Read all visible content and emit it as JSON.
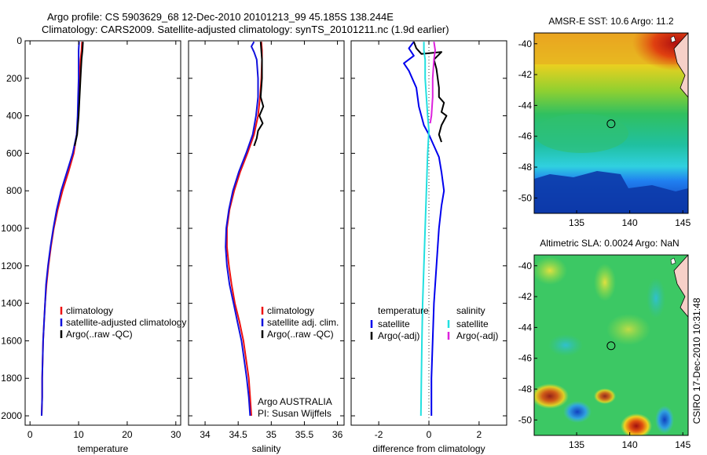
{
  "header": {
    "line1": "Argo profile: CS 5903629_68 12-Dec-2010 20101213_99 45.185S 138.244E",
    "line2": "Climatology: CARS2009. Satellite-adjusted climatology: synTS_20101211.nc (1.9d earlier)"
  },
  "side_note": "CSIRO 17-Dec-2010 10:31:48",
  "institution": {
    "line1": "Argo AUSTRALIA",
    "line2": "PI: Susan Wijffels"
  },
  "colors": {
    "climatology": "#ee1111",
    "satellite": "#1111dd",
    "argo": "#000000",
    "sat_temp": "#0000ee",
    "sat_sal": "#22e0e0",
    "argo_sal": "#dd22dd"
  },
  "chart_data": [
    {
      "type": "line",
      "xlabel": "temperature",
      "ylabel": "",
      "xlim": [
        -1,
        31
      ],
      "ylim": [
        2050,
        0
      ],
      "x_ticks": [
        0,
        10,
        20,
        30
      ],
      "y_ticks": [
        0,
        200,
        400,
        600,
        800,
        1000,
        1200,
        1400,
        1600,
        1800,
        2000
      ],
      "legend": [
        "climatology",
        "satellite-adjusted climatology",
        "Argo(..raw -QC)"
      ],
      "series": [
        {
          "name": "climatology",
          "color": "#ee1111",
          "points": [
            [
              10.7,
              5
            ],
            [
              10.6,
              50
            ],
            [
              10.4,
              100
            ],
            [
              10.2,
              200
            ],
            [
              10,
              300
            ],
            [
              9.9,
              400
            ],
            [
              9.6,
              500
            ],
            [
              9,
              600
            ],
            [
              7.9,
              700
            ],
            [
              6.7,
              800
            ],
            [
              5.7,
              900
            ],
            [
              4.9,
              1000
            ],
            [
              4.3,
              1100
            ],
            [
              3.8,
              1200
            ],
            [
              3.4,
              1300
            ],
            [
              3.1,
              1400
            ],
            [
              2.9,
              1500
            ],
            [
              2.7,
              1600
            ],
            [
              2.6,
              1700
            ],
            [
              2.5,
              1800
            ],
            [
              2.5,
              1900
            ],
            [
              2.4,
              2000
            ]
          ]
        },
        {
          "name": "satellite-adjusted climatology",
          "color": "#1111dd",
          "points": [
            [
              10.1,
              5
            ],
            [
              10,
              50
            ],
            [
              10,
              100
            ],
            [
              10,
              200
            ],
            [
              9.9,
              300
            ],
            [
              9.8,
              400
            ],
            [
              9.6,
              500
            ],
            [
              8.8,
              600
            ],
            [
              7.6,
              700
            ],
            [
              6.4,
              800
            ],
            [
              5.5,
              900
            ],
            [
              4.8,
              1000
            ],
            [
              4.2,
              1100
            ],
            [
              3.7,
              1200
            ],
            [
              3.3,
              1300
            ],
            [
              3.1,
              1400
            ],
            [
              2.9,
              1500
            ],
            [
              2.7,
              1600
            ],
            [
              2.6,
              1700
            ],
            [
              2.5,
              1800
            ],
            [
              2.5,
              1900
            ],
            [
              2.4,
              2000
            ]
          ]
        },
        {
          "name": "Argo(..raw -QC)",
          "color": "#000000",
          "points": [
            [
              10.9,
              5
            ],
            [
              10.8,
              50
            ],
            [
              10.6,
              100
            ],
            [
              10.4,
              200
            ],
            [
              10.2,
              300
            ],
            [
              10,
              400
            ],
            [
              9.7,
              500
            ],
            [
              9.2,
              560
            ]
          ]
        }
      ]
    },
    {
      "type": "line",
      "xlabel": "salinity",
      "ylabel": "",
      "xlim": [
        33.75,
        36.1
      ],
      "ylim": [
        2050,
        0
      ],
      "x_ticks": [
        34,
        34.5,
        35,
        35.5,
        36
      ],
      "y_ticks": [],
      "legend": [
        "climatology",
        "satellite adj. clim.",
        "Argo(..raw -QC)"
      ],
      "series": [
        {
          "name": "climatology",
          "color": "#ee1111",
          "points": [
            [
              34.85,
              5
            ],
            [
              34.86,
              50
            ],
            [
              34.86,
              100
            ],
            [
              34.85,
              200
            ],
            [
              34.83,
              300
            ],
            [
              34.8,
              400
            ],
            [
              34.74,
              500
            ],
            [
              34.64,
              600
            ],
            [
              34.53,
              700
            ],
            [
              34.44,
              800
            ],
            [
              34.37,
              900
            ],
            [
              34.33,
              1000
            ],
            [
              34.33,
              1100
            ],
            [
              34.36,
              1200
            ],
            [
              34.4,
              1300
            ],
            [
              34.45,
              1400
            ],
            [
              34.52,
              1500
            ],
            [
              34.58,
              1600
            ],
            [
              34.62,
              1700
            ],
            [
              34.66,
              1800
            ],
            [
              34.68,
              1900
            ],
            [
              34.7,
              2000
            ]
          ]
        },
        {
          "name": "satellite adj. clim.",
          "color": "#1111dd",
          "points": [
            [
              34.74,
              5
            ],
            [
              34.7,
              30
            ],
            [
              34.74,
              60
            ],
            [
              34.78,
              100
            ],
            [
              34.8,
              200
            ],
            [
              34.8,
              300
            ],
            [
              34.77,
              400
            ],
            [
              34.72,
              500
            ],
            [
              34.62,
              600
            ],
            [
              34.51,
              700
            ],
            [
              34.42,
              800
            ],
            [
              34.36,
              900
            ],
            [
              34.32,
              1000
            ],
            [
              34.31,
              1100
            ],
            [
              34.33,
              1200
            ],
            [
              34.37,
              1300
            ],
            [
              34.43,
              1400
            ],
            [
              34.49,
              1500
            ],
            [
              34.55,
              1600
            ],
            [
              34.59,
              1700
            ],
            [
              34.63,
              1800
            ],
            [
              34.66,
              1900
            ],
            [
              34.68,
              2000
            ]
          ]
        },
        {
          "name": "Argo(..raw -QC)",
          "color": "#000000",
          "points": [
            [
              34.84,
              5
            ],
            [
              34.86,
              100
            ],
            [
              34.86,
              200
            ],
            [
              34.84,
              300
            ],
            [
              34.88,
              350
            ],
            [
              34.82,
              400
            ],
            [
              34.87,
              440
            ],
            [
              34.8,
              480
            ],
            [
              34.78,
              520
            ],
            [
              34.74,
              560
            ]
          ]
        }
      ]
    },
    {
      "type": "line",
      "xlabel": "difference from climatology",
      "ylabel": "",
      "xlim": [
        -3.1,
        3.1
      ],
      "ylim": [
        2050,
        0
      ],
      "x_ticks": [
        -2,
        0,
        2
      ],
      "y_ticks": [],
      "legend_columns": [
        {
          "title": "temperature",
          "items": [
            "satellite",
            "Argo(-adj)"
          ]
        },
        {
          "title": "salinity",
          "items": [
            "satellite",
            "Argo(-adj)"
          ]
        }
      ],
      "series": [
        {
          "name": "temperature satellite",
          "color": "#0000ee",
          "points": [
            [
              -0.6,
              5
            ],
            [
              -0.8,
              40
            ],
            [
              -0.6,
              80
            ],
            [
              -1,
              120
            ],
            [
              -0.8,
              160
            ],
            [
              -0.5,
              250
            ],
            [
              -0.4,
              350
            ],
            [
              -0.2,
              450
            ],
            [
              0,
              500
            ],
            [
              0.2,
              560
            ],
            [
              0.4,
              620
            ],
            [
              0.5,
              700
            ],
            [
              0.6,
              800
            ],
            [
              0.5,
              880
            ],
            [
              0.4,
              1000
            ],
            [
              0.3,
              1200
            ],
            [
              0.2,
              1400
            ],
            [
              0.15,
              1600
            ],
            [
              0.1,
              1800
            ],
            [
              0.1,
              2000
            ]
          ]
        },
        {
          "name": "temperature Argo(-adj)",
          "color": "#000000",
          "points": [
            [
              -0.6,
              5
            ],
            [
              -0.5,
              40
            ],
            [
              -0.3,
              70
            ],
            [
              0.5,
              60
            ],
            [
              0.2,
              100
            ],
            [
              0.3,
              150
            ],
            [
              0.4,
              250
            ],
            [
              0.4,
              300
            ],
            [
              0.6,
              330
            ],
            [
              0.5,
              380
            ],
            [
              0.7,
              400
            ],
            [
              0.5,
              450
            ],
            [
              0.4,
              500
            ],
            [
              0.5,
              540
            ]
          ]
        },
        {
          "name": "salinity satellite",
          "color": "#22e0e0",
          "points": [
            [
              -0.2,
              5
            ],
            [
              -0.2,
              50
            ],
            [
              -0.15,
              100
            ],
            [
              -0.15,
              200
            ],
            [
              -0.1,
              300
            ],
            [
              -0.05,
              400
            ],
            [
              0,
              480
            ],
            [
              -0.05,
              600
            ],
            [
              -0.1,
              800
            ],
            [
              -0.15,
              1000
            ],
            [
              -0.2,
              1200
            ],
            [
              -0.25,
              1400
            ],
            [
              -0.28,
              1600
            ],
            [
              -0.3,
              1800
            ],
            [
              -0.32,
              2000
            ]
          ]
        },
        {
          "name": "salinity Argo(-adj)",
          "color": "#dd22dd",
          "points": [
            [
              0.2,
              5
            ],
            [
              0.25,
              50
            ],
            [
              0.2,
              100
            ],
            [
              0.15,
              200
            ],
            [
              0.15,
              300
            ],
            [
              0.1,
              400
            ],
            [
              0.05,
              440
            ]
          ]
        }
      ]
    },
    {
      "type": "heatmap",
      "title": "AMSR-E SST: 10.6 Argo: 11.2",
      "xlim": [
        131,
        145.5
      ],
      "ylim": [
        -51,
        -39.3
      ],
      "x_ticks": [
        135,
        140,
        145
      ],
      "y_ticks": [
        -40,
        -42,
        -44,
        -46,
        -48,
        -50
      ],
      "marker": [
        138.24,
        -45.19
      ]
    },
    {
      "type": "heatmap",
      "title": "Altimetric SLA: 0.0024 Argo: NaN",
      "xlim": [
        131,
        145.5
      ],
      "ylim": [
        -51,
        -39.3
      ],
      "x_ticks": [
        135,
        140,
        145
      ],
      "y_ticks": [
        -40,
        -42,
        -44,
        -46,
        -48,
        -50
      ],
      "marker": [
        138.24,
        -45.19
      ]
    }
  ]
}
